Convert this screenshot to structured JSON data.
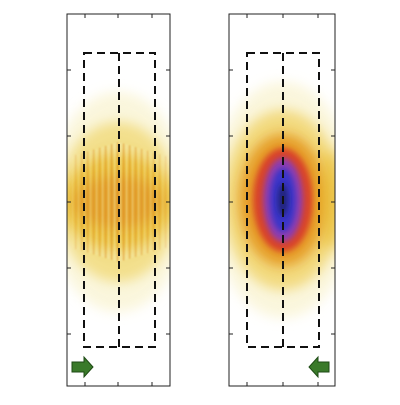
{
  "figure": {
    "panels": [
      {
        "id": "left",
        "arrow_direction": "right",
        "pattern": "striped-yellow-orange",
        "peak_intensity": 0.55
      },
      {
        "id": "right",
        "arrow_direction": "left",
        "pattern": "focused-blue-core",
        "peak_intensity": 1.0
      }
    ],
    "colors": {
      "frame": "#222222",
      "dashed": "#111111",
      "arrow_fill": "#3a7a2a",
      "arrow_stroke": "#1e4a14",
      "colormap": [
        "#ffffff",
        "#f5e9a8",
        "#e8b820",
        "#e07a18",
        "#d4282a",
        "#6a3cc8",
        "#2a2aa8"
      ]
    }
  }
}
